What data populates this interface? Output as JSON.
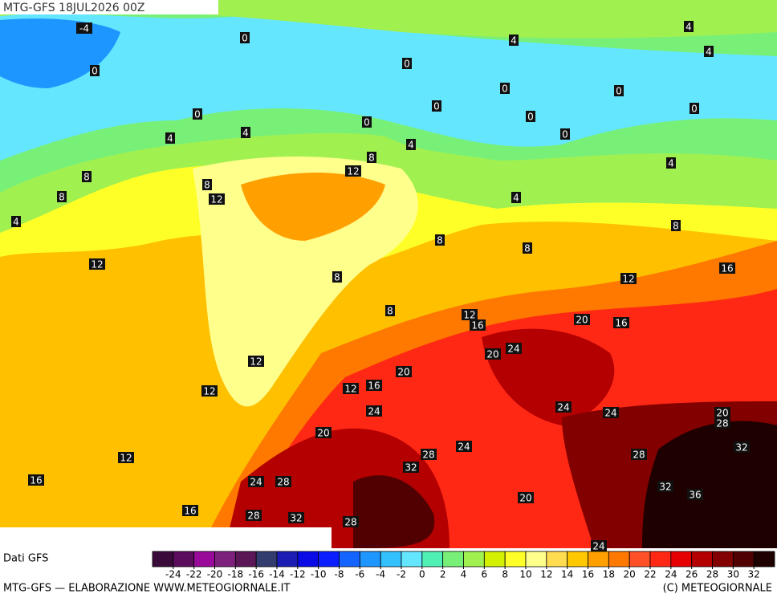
{
  "header": {
    "title": "MTG-GFS 18JUL2026 00Z"
  },
  "contour_labels": [
    -4,
    0,
    4,
    4,
    4,
    0,
    0,
    0,
    0,
    0,
    0,
    0,
    0,
    0,
    0,
    4,
    4,
    4,
    8,
    12,
    8,
    8,
    12,
    4,
    4,
    8,
    4,
    8,
    8,
    8,
    12,
    16,
    8,
    12,
    8,
    12,
    16,
    20,
    16,
    24,
    20,
    12,
    20,
    16,
    12,
    12,
    24,
    24,
    24,
    20,
    28,
    20,
    24,
    28,
    32,
    28,
    12,
    32,
    16,
    24,
    28,
    32,
    36,
    20,
    16,
    28,
    32,
    28,
    24
  ],
  "colorbar": {
    "source": "Dati GFS",
    "ticks": [
      -24,
      -22,
      -20,
      -18,
      -16,
      -14,
      -12,
      -10,
      -8,
      -6,
      -4,
      -2,
      0,
      2,
      4,
      6,
      8,
      10,
      12,
      14,
      16,
      18,
      20,
      22,
      24,
      26,
      28,
      30,
      32
    ],
    "colors": [
      "#3a0a3a",
      "#5c0c5c",
      "#9a0a9a",
      "#7e217e",
      "#5a1656",
      "#323c6e",
      "#1c1cb4",
      "#0a0ae6",
      "#0a1eff",
      "#1464ff",
      "#1e96ff",
      "#32c0ff",
      "#64e6ff",
      "#50f0b4",
      "#78f078",
      "#a0f050",
      "#d2f000",
      "#ffff28",
      "#ffff8c",
      "#ffdc50",
      "#ffc800",
      "#ffa000",
      "#ff7800",
      "#ff5028",
      "#ff2814",
      "#e60000",
      "#b40000",
      "#820000",
      "#500000",
      "#1e0000"
    ]
  },
  "footer": {
    "left": "MTG-GFS — ELABORAZIONE WWW.METEOGIORNALE.IT",
    "right": "(C) METEOGIORNALE"
  }
}
